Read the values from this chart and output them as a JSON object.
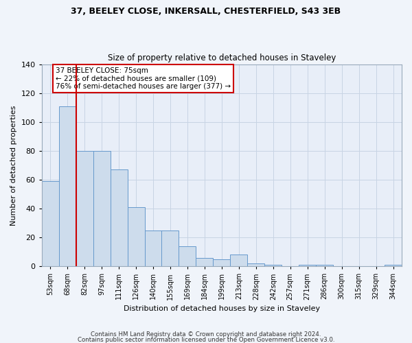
{
  "title1": "37, BEELEY CLOSE, INKERSALL, CHESTERFIELD, S43 3EB",
  "title2": "Size of property relative to detached houses in Staveley",
  "xlabel": "Distribution of detached houses by size in Staveley",
  "ylabel": "Number of detached properties",
  "categories": [
    "53sqm",
    "68sqm",
    "82sqm",
    "97sqm",
    "111sqm",
    "126sqm",
    "140sqm",
    "155sqm",
    "169sqm",
    "184sqm",
    "199sqm",
    "213sqm",
    "228sqm",
    "242sqm",
    "257sqm",
    "271sqm",
    "286sqm",
    "300sqm",
    "315sqm",
    "329sqm",
    "344sqm"
  ],
  "values": [
    59,
    111,
    80,
    80,
    67,
    41,
    25,
    25,
    14,
    6,
    5,
    8,
    2,
    1,
    0,
    1,
    1,
    0,
    0,
    0,
    1
  ],
  "bar_color": "#cddcec",
  "bar_edge_color": "#6699cc",
  "vline_color": "#cc0000",
  "annotation_text": "37 BEELEY CLOSE: 75sqm\n← 22% of detached houses are smaller (109)\n76% of semi-detached houses are larger (377) →",
  "annotation_box_color": "#ffffff",
  "annotation_box_edge": "#cc0000",
  "ylim": [
    0,
    140
  ],
  "yticks": [
    0,
    20,
    40,
    60,
    80,
    100,
    120,
    140
  ],
  "grid_color": "#c8d4e4",
  "bg_color": "#e8eef8",
  "fig_color": "#f0f4fa",
  "footer1": "Contains HM Land Registry data © Crown copyright and database right 2024.",
  "footer2": "Contains public sector information licensed under the Open Government Licence v3.0."
}
